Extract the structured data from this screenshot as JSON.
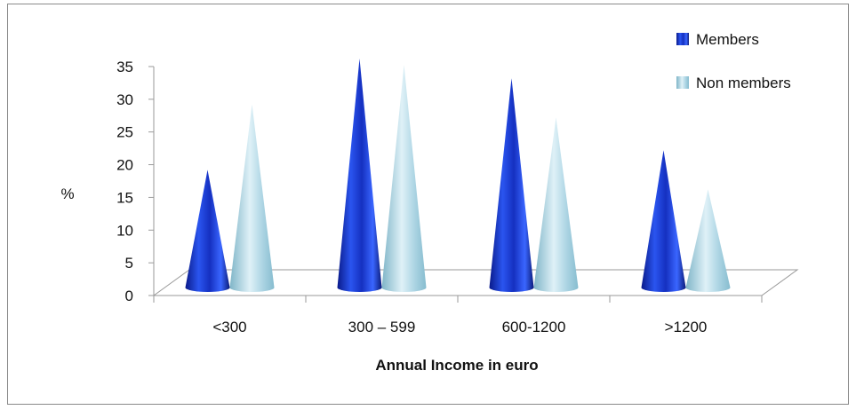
{
  "chart_data": {
    "type": "bar",
    "style": "3d-cone",
    "categories": [
      "<300",
      "300 – 599",
      "600-1200",
      ">1200"
    ],
    "series": [
      {
        "name": "Members",
        "values": [
          18,
          35,
          32,
          21
        ],
        "color": "#1f3fd6"
      },
      {
        "name": "Non members",
        "values": [
          28,
          34,
          26,
          15
        ],
        "color": "#a8d3e2"
      }
    ],
    "xlabel": "Annual Income in euro",
    "ylabel": "%",
    "ylim": [
      0,
      35
    ],
    "yticks": [
      0,
      5,
      10,
      15,
      20,
      25,
      30,
      35
    ],
    "grid": false,
    "legend": "top-right"
  }
}
